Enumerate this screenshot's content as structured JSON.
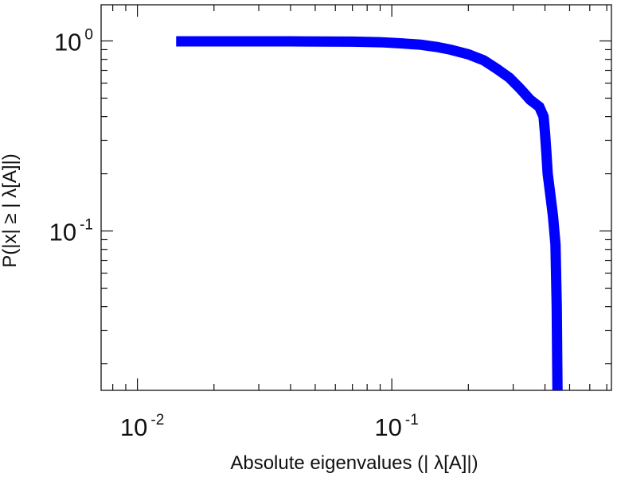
{
  "chart_data": {
    "type": "line",
    "title": "",
    "xlabel": "Absolute eigenvalues (|     λ[A]|)",
    "ylabel": "P(|x|  ≥ | λ[A]|)",
    "xscale": "log",
    "yscale": "log",
    "xlim": [
      0.0072,
      0.73
    ],
    "ylim": [
      0.0145,
      1.55
    ],
    "grid": false,
    "legend": "none",
    "x_ticks": [
      {
        "base": "10",
        "exp": "-2",
        "value": 0.01
      },
      {
        "base": "10",
        "exp": "-1",
        "value": 0.1
      }
    ],
    "y_ticks": [
      {
        "base": "10",
        "exp": "0",
        "value": 1
      },
      {
        "base": "10",
        "exp": "-1",
        "value": 0.1
      }
    ],
    "series": [
      {
        "color": "#0000ff",
        "x": [
          0.0142,
          0.02,
          0.04,
          0.07,
          0.09,
          0.11,
          0.13,
          0.15,
          0.17,
          0.2,
          0.23,
          0.26,
          0.29,
          0.32,
          0.35,
          0.38,
          0.395,
          0.4,
          0.405,
          0.41,
          0.42,
          0.43,
          0.44,
          0.445,
          0.447,
          0.448
        ],
        "y": [
          0.995,
          0.995,
          0.995,
          0.992,
          0.985,
          0.97,
          0.955,
          0.93,
          0.9,
          0.85,
          0.79,
          0.71,
          0.64,
          0.56,
          0.49,
          0.45,
          0.4,
          0.33,
          0.26,
          0.2,
          0.155,
          0.12,
          0.085,
          0.04,
          0.02,
          0.0145
        ]
      }
    ]
  }
}
